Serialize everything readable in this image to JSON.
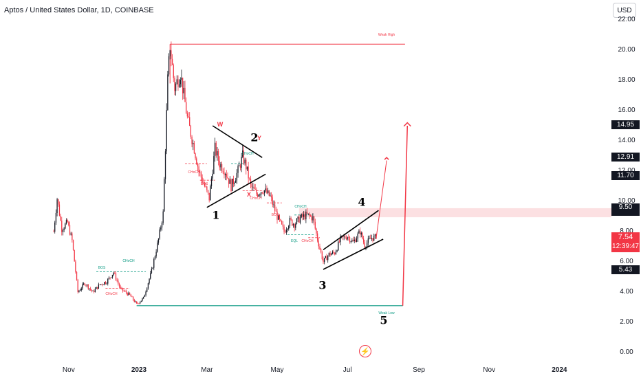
{
  "title": "Aptos / United States Dollar, 1D, COINBASE",
  "currency_button": "USD",
  "price_axis": [
    "22.00",
    "20.00",
    "18.00",
    "16.00",
    "14.00",
    "12.00",
    "10.00",
    "8.00",
    "6.00",
    "4.00",
    "2.00",
    "0.00"
  ],
  "time_axis": [
    "Nov",
    "2023",
    "Mar",
    "May",
    "Jul",
    "Sep",
    "Nov",
    "2024"
  ],
  "price_tags": {
    "p1495": "14.95",
    "p1291": "12.91",
    "p1170": "11.70",
    "p950": "9.50",
    "last": "7.54",
    "countdown": "12:39:47",
    "p543": "5.43"
  },
  "wave_labels": {
    "w1": "1",
    "w2": "2",
    "w3": "3",
    "w4": "4",
    "w5": "5",
    "wx": "X",
    "wy": "Y",
    "ww": "W"
  },
  "annotations": {
    "weak_high": "Weak High",
    "weak_low": "Weak Low",
    "bos": "BOS",
    "choch": "CHoCH",
    "eql": "EQL"
  },
  "colors": {
    "up": "#131722",
    "down": "#f23645",
    "accent_red": "#f23645",
    "accent_green": "#089981",
    "zone": "#fbd5d8"
  },
  "chart_data": {
    "type": "candlestick",
    "title": "Aptos / United States Dollar, 1D, COINBASE",
    "y_range": [
      0,
      22
    ],
    "y_ticks": [
      0,
      2,
      4,
      6,
      8,
      10,
      12,
      14,
      16,
      18,
      20,
      22
    ],
    "x_ticks": [
      "Nov",
      "2023",
      "Mar",
      "May",
      "Jul",
      "Sep",
      "Nov",
      "2024"
    ],
    "path_points": [
      [
        "2022-10-19",
        8.0
      ],
      [
        "2022-10-22",
        10.2
      ],
      [
        "2022-10-26",
        8.2
      ],
      [
        "2022-10-31",
        8.6
      ],
      [
        "2022-11-04",
        7.4
      ],
      [
        "2022-11-09",
        4.0
      ],
      [
        "2022-11-15",
        4.6
      ],
      [
        "2022-11-22",
        4.0
      ],
      [
        "2022-11-28",
        4.5
      ],
      [
        "2022-12-04",
        4.7
      ],
      [
        "2022-12-10",
        5.3
      ],
      [
        "2022-12-16",
        4.2
      ],
      [
        "2022-12-24",
        3.8
      ],
      [
        "2022-12-30",
        3.2
      ],
      [
        "2023-01-05",
        3.6
      ],
      [
        "2023-01-12",
        5.4
      ],
      [
        "2023-01-18",
        7.5
      ],
      [
        "2023-01-22",
        9.2
      ],
      [
        "2023-01-26",
        18.0
      ],
      [
        "2023-01-28",
        20.3
      ],
      [
        "2023-02-01",
        17.5
      ],
      [
        "2023-02-06",
        18.5
      ],
      [
        "2023-02-12",
        15.5
      ],
      [
        "2023-02-18",
        13.5
      ],
      [
        "2023-02-22",
        12.0
      ],
      [
        "2023-02-27",
        11.0
      ],
      [
        "2023-03-03",
        10.2
      ],
      [
        "2023-03-08",
        13.5
      ],
      [
        "2023-03-12",
        12.5
      ],
      [
        "2023-03-17",
        12.0
      ],
      [
        "2023-03-22",
        11.0
      ],
      [
        "2023-03-28",
        12.0
      ],
      [
        "2023-04-01",
        13.0
      ],
      [
        "2023-04-04",
        12.3
      ],
      [
        "2023-04-08",
        11.0
      ],
      [
        "2023-04-13",
        10.5
      ],
      [
        "2023-04-19",
        10.8
      ],
      [
        "2023-04-25",
        10.3
      ],
      [
        "2023-05-01",
        9.0
      ],
      [
        "2023-05-07",
        8.0
      ],
      [
        "2023-05-12",
        8.7
      ],
      [
        "2023-05-16",
        8.5
      ],
      [
        "2023-05-21",
        8.9
      ],
      [
        "2023-05-27",
        9.1
      ],
      [
        "2023-06-01",
        8.9
      ],
      [
        "2023-06-05",
        7.5
      ],
      [
        "2023-06-10",
        6.0
      ],
      [
        "2023-06-15",
        6.5
      ],
      [
        "2023-06-20",
        6.6
      ],
      [
        "2023-06-25",
        7.5
      ],
      [
        "2023-07-01",
        7.7
      ],
      [
        "2023-07-06",
        7.3
      ],
      [
        "2023-07-12",
        8.0
      ],
      [
        "2023-07-16",
        7.1
      ],
      [
        "2023-07-22",
        7.6
      ],
      [
        "2023-07-26",
        7.6
      ]
    ],
    "last_price": 7.54,
    "key_levels": [
      20.4,
      14.95,
      12.91,
      11.7,
      9.5,
      5.43,
      3.1
    ],
    "wave_count": [
      {
        "label": "1",
        "date": "2023-03-03",
        "price": 10.2
      },
      {
        "label": "2",
        "date": "2023-04-02",
        "price": 13.1
      },
      {
        "label": "3",
        "date": "2023-06-10",
        "price": 6.0
      },
      {
        "label": "4",
        "date": "2023-07-26",
        "price": 9.5
      },
      {
        "label": "5",
        "date": "2023-08-18",
        "price": 3.1
      }
    ],
    "projection_target": 15.1
  }
}
